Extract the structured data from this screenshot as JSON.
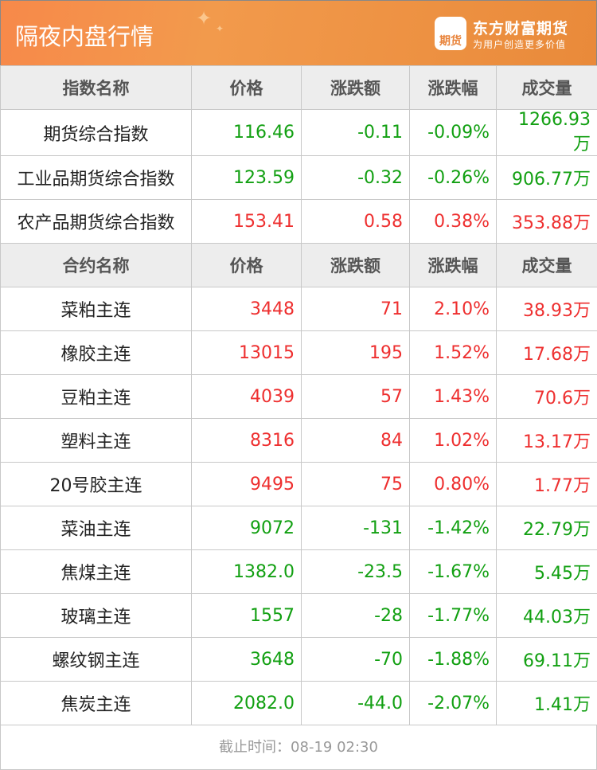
{
  "header": {
    "title": "隔夜内盘行情",
    "brand": "东方财富期货",
    "slogan": "为用户创造更多价值",
    "logo_text": "期货"
  },
  "colors": {
    "up": "#ee2f2f",
    "down": "#12a012",
    "header": "#f29a4c"
  },
  "index_table": {
    "headers": [
      "指数名称",
      "价格",
      "涨跌额",
      "涨跌幅",
      "成交量"
    ],
    "rows": [
      {
        "name": "期货综合指数",
        "price": "116.46",
        "change": "-0.11",
        "pct": "-0.09%",
        "volume": "1266.93万",
        "dir": "down"
      },
      {
        "name": "工业品期货综合指数",
        "price": "123.59",
        "change": "-0.32",
        "pct": "-0.26%",
        "volume": "906.77万",
        "dir": "down"
      },
      {
        "name": "农产品期货综合指数",
        "price": "153.41",
        "change": "0.58",
        "pct": "0.38%",
        "volume": "353.88万",
        "dir": "up"
      }
    ]
  },
  "contract_table": {
    "headers": [
      "合约名称",
      "价格",
      "涨跌额",
      "涨跌幅",
      "成交量"
    ],
    "rows": [
      {
        "name": "菜粕主连",
        "price": "3448",
        "change": "71",
        "pct": "2.10%",
        "volume": "38.93万",
        "dir": "up"
      },
      {
        "name": "橡胶主连",
        "price": "13015",
        "change": "195",
        "pct": "1.52%",
        "volume": "17.68万",
        "dir": "up"
      },
      {
        "name": "豆粕主连",
        "price": "4039",
        "change": "57",
        "pct": "1.43%",
        "volume": "70.6万",
        "dir": "up"
      },
      {
        "name": "塑料主连",
        "price": "8316",
        "change": "84",
        "pct": "1.02%",
        "volume": "13.17万",
        "dir": "up"
      },
      {
        "name": "20号胶主连",
        "price": "9495",
        "change": "75",
        "pct": "0.80%",
        "volume": "1.77万",
        "dir": "up"
      },
      {
        "name": "菜油主连",
        "price": "9072",
        "change": "-131",
        "pct": "-1.42%",
        "volume": "22.79万",
        "dir": "down"
      },
      {
        "name": "焦煤主连",
        "price": "1382.0",
        "change": "-23.5",
        "pct": "-1.67%",
        "volume": "5.45万",
        "dir": "down"
      },
      {
        "name": "玻璃主连",
        "price": "1557",
        "change": "-28",
        "pct": "-1.77%",
        "volume": "44.03万",
        "dir": "down"
      },
      {
        "name": "螺纹钢主连",
        "price": "3648",
        "change": "-70",
        "pct": "-1.88%",
        "volume": "69.11万",
        "dir": "down"
      },
      {
        "name": "焦炭主连",
        "price": "2082.0",
        "change": "-44.0",
        "pct": "-2.07%",
        "volume": "1.41万",
        "dir": "down"
      }
    ]
  },
  "footer": {
    "timestamp": "截止时间：08-19 02:30"
  }
}
